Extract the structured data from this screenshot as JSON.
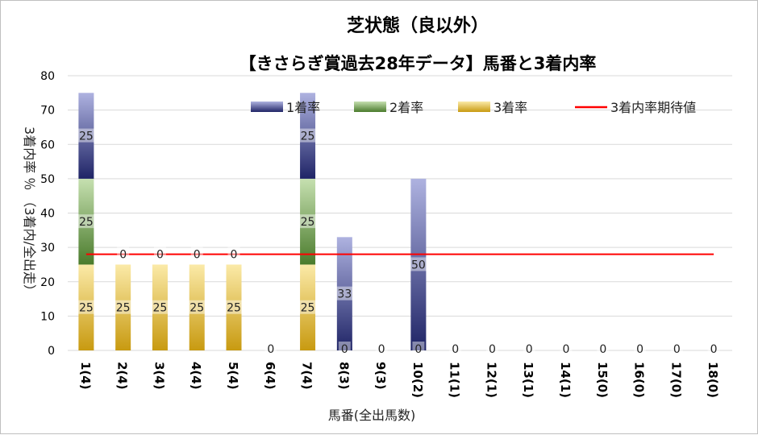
{
  "chart_data": {
    "type": "bar",
    "title": "芝状態（良以外）",
    "subtitle": "【きさらぎ賞過去28年データ】馬番と3着内率",
    "xlabel": "馬番(全出馬数)",
    "ylabel": "3着内率 ％ （3着内/全出走）",
    "ylim": [
      0,
      80
    ],
    "yticks": [
      0,
      10,
      20,
      30,
      40,
      50,
      60,
      70,
      80
    ],
    "grid": true,
    "legend_position": "top",
    "categories": [
      "1(4)",
      "2(4)",
      "3(4)",
      "4(4)",
      "5(4)",
      "6(4)",
      "7(4)",
      "8(3)",
      "9(3)",
      "10(2)",
      "11(1)",
      "12(1)",
      "13(1)",
      "14(1)",
      "15(0)",
      "16(0)",
      "17(0)",
      "18(0)"
    ],
    "series": [
      {
        "name": "3着率",
        "kind": "bar",
        "values": [
          25,
          25,
          25,
          25,
          25,
          0,
          25,
          0,
          0,
          0,
          0,
          0,
          0,
          0,
          0,
          0,
          0,
          0
        ],
        "color": "#c89a10",
        "color_light": "#fbeaa8"
      },
      {
        "name": "2着率",
        "kind": "bar",
        "values": [
          25,
          0,
          0,
          0,
          0,
          0,
          25,
          0,
          0,
          0,
          0,
          0,
          0,
          0,
          0,
          0,
          0,
          0
        ],
        "color": "#4a7b2c",
        "color_light": "#c6e0b0"
      },
      {
        "name": "1着率",
        "kind": "bar",
        "values": [
          25,
          0,
          0,
          0,
          0,
          0,
          25,
          33,
          0,
          50,
          0,
          0,
          0,
          0,
          0,
          0,
          0,
          0
        ],
        "color": "#1f2466",
        "color_light": "#aeb2e0"
      },
      {
        "name": "3着内率期待値",
        "kind": "line",
        "value": 28,
        "color": "#ff0000"
      }
    ],
    "data_labels": {
      "bottom": [
        "25",
        "25",
        "25",
        "25",
        "25",
        "0",
        "25",
        "0",
        "0",
        "0",
        "0",
        "0",
        "0",
        "0",
        "0",
        "0",
        "0",
        "0"
      ],
      "middle": [
        "25",
        "0",
        "0",
        "0",
        "0",
        "",
        "25",
        "",
        "",
        "",
        "",
        "",
        "",
        "",
        "",
        "",
        "",
        ""
      ],
      "top": [
        "25",
        "",
        "",
        "",
        "",
        "",
        "25",
        "33",
        "",
        "50",
        "",
        "",
        "",
        "",
        "",
        "",
        "",
        ""
      ]
    },
    "legend_order": [
      "1着率",
      "2着率",
      "3着率",
      "3着内率期待値"
    ]
  }
}
